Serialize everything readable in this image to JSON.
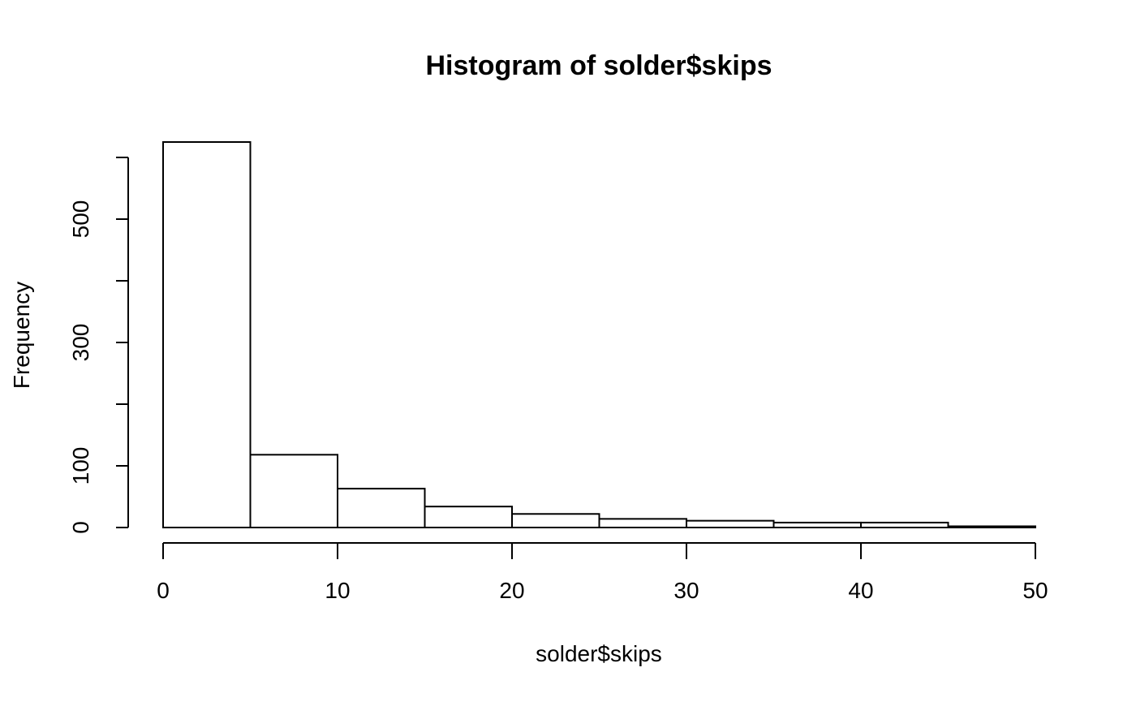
{
  "chart_data": {
    "type": "bar",
    "title": "Histogram of solder$skips",
    "xlabel": "solder$skips",
    "ylabel": "Frequency",
    "bins": [
      {
        "start": 0,
        "end": 5,
        "value": 625
      },
      {
        "start": 5,
        "end": 10,
        "value": 118
      },
      {
        "start": 10,
        "end": 15,
        "value": 63
      },
      {
        "start": 15,
        "end": 20,
        "value": 34
      },
      {
        "start": 20,
        "end": 25,
        "value": 22
      },
      {
        "start": 25,
        "end": 30,
        "value": 14
      },
      {
        "start": 30,
        "end": 35,
        "value": 11
      },
      {
        "start": 35,
        "end": 40,
        "value": 8
      },
      {
        "start": 40,
        "end": 45,
        "value": 8
      },
      {
        "start": 45,
        "end": 50,
        "value": 2
      }
    ],
    "xlim": [
      0,
      50
    ],
    "ylim": [
      0,
      600
    ],
    "x_ticks": [
      0,
      10,
      20,
      30,
      40,
      50
    ],
    "y_ticks": [
      0,
      100,
      200,
      300,
      400,
      500,
      600
    ],
    "y_tick_labels": [
      "0",
      "100",
      "",
      "300",
      "",
      "500",
      ""
    ],
    "grid": false,
    "colors": {
      "bar_fill": "#ffffff",
      "bar_stroke": "#000000",
      "axis": "#000000"
    }
  }
}
